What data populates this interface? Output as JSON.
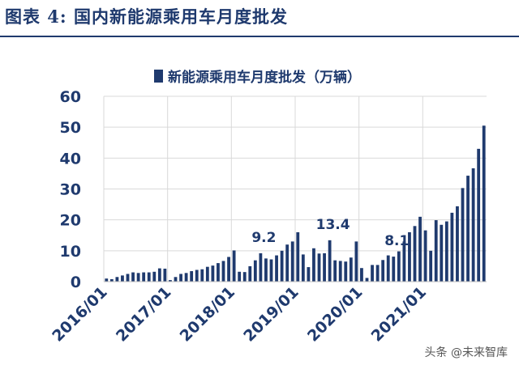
{
  "figure_title": "图表 4:  国内新能源乘用车月度批发",
  "watermark": "头条 @未来智库",
  "colors": {
    "bar": "#1f3a6e",
    "title": "#1f3a6e",
    "grid": "#d9d9d9",
    "axis_text": "#1f3a6e"
  },
  "chart_data": {
    "type": "bar",
    "title": "",
    "legend": {
      "label": "新能源乘用车月度批发（万辆）",
      "position": "top-center"
    },
    "ylim": [
      0,
      60
    ],
    "yticks": [
      0,
      10,
      20,
      30,
      40,
      50,
      60
    ],
    "grid": true,
    "xtick_labels": [
      "2016/01",
      "2017/01",
      "2018/01",
      "2019/01",
      "2020/01",
      "2021/01"
    ],
    "xtick_positions": [
      "2016/01",
      "2017/01",
      "2018/01",
      "2019/01",
      "2020/01",
      "2021/01"
    ],
    "categories": [
      "2016/01",
      "2016/02",
      "2016/03",
      "2016/04",
      "2016/05",
      "2016/06",
      "2016/07",
      "2016/08",
      "2016/09",
      "2016/10",
      "2016/11",
      "2016/12",
      "2017/01",
      "2017/02",
      "2017/03",
      "2017/04",
      "2017/05",
      "2017/06",
      "2017/07",
      "2017/08",
      "2017/09",
      "2017/10",
      "2017/11",
      "2017/12",
      "2018/01",
      "2018/02",
      "2018/03",
      "2018/04",
      "2018/05",
      "2018/06",
      "2018/07",
      "2018/08",
      "2018/09",
      "2018/10",
      "2018/11",
      "2018/12",
      "2019/01",
      "2019/02",
      "2019/03",
      "2019/04",
      "2019/05",
      "2019/06",
      "2019/07",
      "2019/08",
      "2019/09",
      "2019/10",
      "2019/11",
      "2019/12",
      "2020/01",
      "2020/02",
      "2020/03",
      "2020/04",
      "2020/05",
      "2020/06",
      "2020/07",
      "2020/08",
      "2020/09",
      "2020/10",
      "2020/11",
      "2020/12",
      "2021/01",
      "2021/02",
      "2021/03",
      "2021/04",
      "2021/05",
      "2021/06",
      "2021/07",
      "2021/08",
      "2021/09",
      "2021/10",
      "2021/11",
      "2021/12"
    ],
    "values": [
      1.0,
      0.8,
      1.5,
      2.0,
      2.5,
      3.0,
      2.8,
      3.0,
      3.0,
      3.2,
      4.3,
      4.2,
      0.5,
      1.5,
      2.5,
      2.8,
      3.4,
      3.8,
      4.0,
      4.8,
      5.2,
      6.0,
      6.7,
      8.0,
      10.1,
      3.2,
      3.1,
      5.0,
      6.9,
      9.2,
      7.5,
      7.2,
      8.5,
      10.0,
      12.0,
      13.0,
      16.0,
      8.8,
      4.7,
      10.8,
      9.1,
      9.2,
      13.4,
      6.9,
      6.7,
      6.5,
      7.8,
      13.0,
      4.4,
      1.2,
      5.4,
      5.4,
      7.0,
      8.5,
      8.1,
      9.8,
      13.0,
      16.0,
      18.0,
      21.0,
      16.6,
      10.0,
      19.9,
      18.4,
      19.5,
      22.3,
      24.4,
      30.3,
      34.3,
      36.7,
      43.0,
      50.5
    ],
    "annotations": [
      {
        "category": "2018/06",
        "text": "9.2"
      },
      {
        "category": "2019/07",
        "text": "13.4"
      },
      {
        "category": "2020/07",
        "text": "8.1"
      }
    ]
  }
}
